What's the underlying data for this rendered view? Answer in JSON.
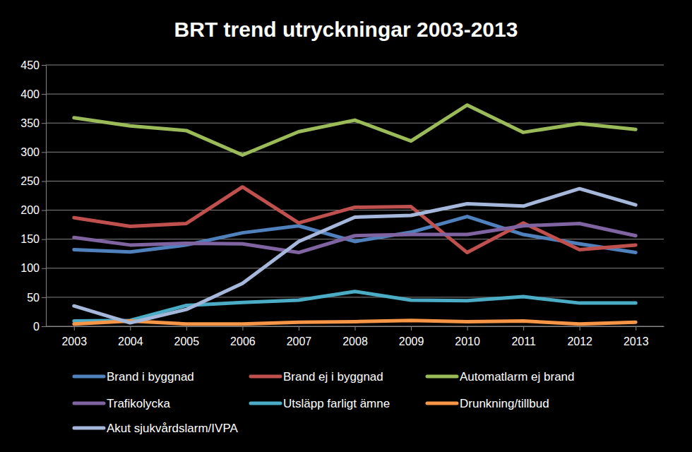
{
  "chart_data": {
    "type": "line",
    "title": "BRT trend utryckningar 2003-2013",
    "categories": [
      "2003",
      "2004",
      "2005",
      "2006",
      "2007",
      "2008",
      "2009",
      "2010",
      "2011",
      "2012",
      "2013"
    ],
    "series": [
      {
        "name": "Brand i byggnad",
        "color": "#4f81bd",
        "values": [
          132,
          128,
          140,
          161,
          173,
          146,
          162,
          189,
          158,
          142,
          127
        ]
      },
      {
        "name": "Brand ej i byggnad",
        "color": "#c0504d",
        "values": [
          187,
          172,
          177,
          240,
          178,
          205,
          206,
          127,
          178,
          132,
          140
        ]
      },
      {
        "name": "Automatlarm ej brand",
        "color": "#9bbb59",
        "values": [
          359,
          345,
          337,
          295,
          335,
          355,
          319,
          381,
          334,
          349,
          339
        ]
      },
      {
        "name": "Trafikolycka",
        "color": "#8064a2",
        "values": [
          153,
          140,
          143,
          142,
          127,
          156,
          158,
          158,
          173,
          177,
          156
        ]
      },
      {
        "name": "Utsläpp farligt ämne",
        "color": "#4bacc6",
        "values": [
          9,
          10,
          36,
          41,
          45,
          60,
          45,
          44,
          51,
          40,
          40
        ]
      },
      {
        "name": "Drunkning/tillbud",
        "color": "#f79646",
        "values": [
          4,
          9,
          4,
          4,
          7,
          8,
          10,
          8,
          9,
          4,
          7
        ]
      },
      {
        "name": "Akut sjukvårdslarm/IVPA",
        "color": "#a5b8db",
        "values": [
          35,
          6,
          29,
          74,
          146,
          188,
          191,
          211,
          207,
          237,
          209
        ]
      }
    ],
    "ylim": [
      0,
      450
    ],
    "yticks": [
      0,
      50,
      100,
      150,
      200,
      250,
      300,
      350,
      400,
      450
    ],
    "grid": true,
    "legend": "bottom"
  }
}
